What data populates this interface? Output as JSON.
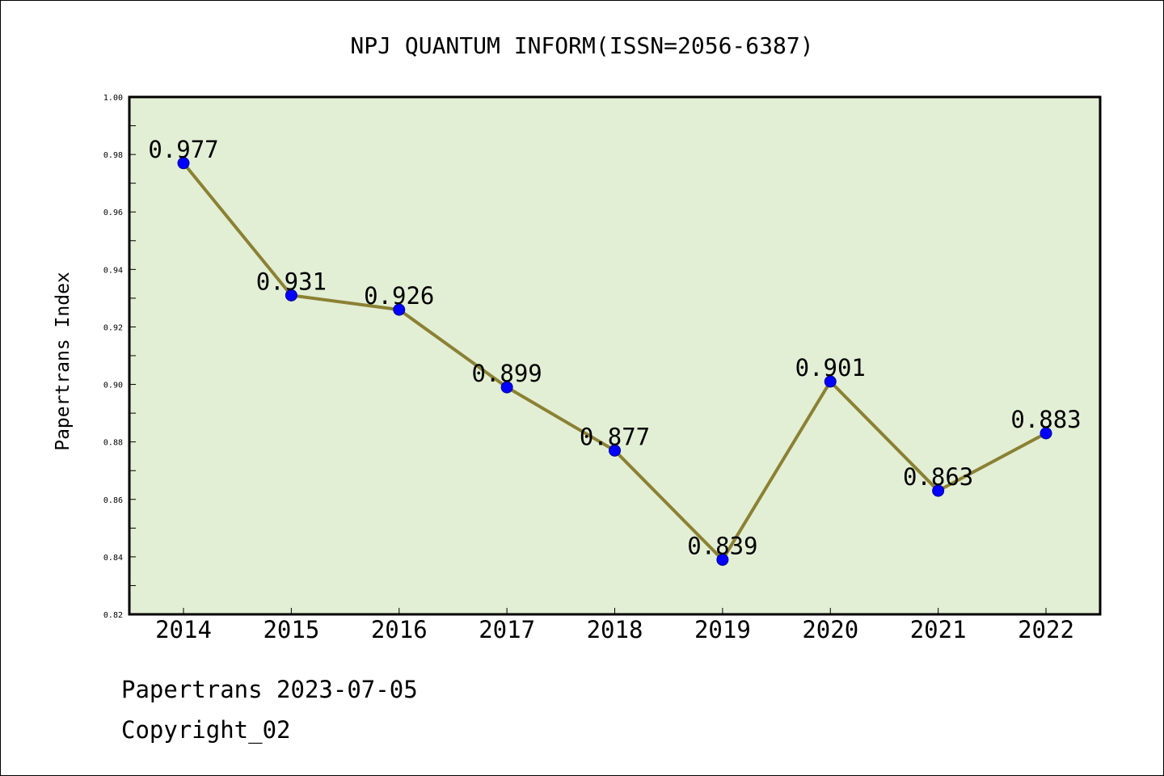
{
  "chart_data": {
    "type": "line",
    "title": "NPJ QUANTUM INFORM(ISSN=2056-6387)",
    "xlabel": "",
    "ylabel": "Papertrans Index",
    "categories": [
      "2014",
      "2015",
      "2016",
      "2017",
      "2018",
      "2019",
      "2020",
      "2021",
      "2022"
    ],
    "series": [
      {
        "values": [
          0.977,
          0.931,
          0.926,
          0.899,
          0.877,
          0.839,
          0.901,
          0.863,
          0.883
        ],
        "data_labels": [
          "0.977",
          "0.931",
          "0.926",
          "0.899",
          "0.877",
          "0.839",
          "0.901",
          "0.863",
          "0.883"
        ]
      }
    ],
    "ylim": [
      0.82,
      1.0
    ],
    "yticks": [
      "0.82",
      "0.84",
      "0.86",
      "0.88",
      "0.90",
      "0.92",
      "0.94",
      "0.96",
      "0.98",
      "1.00"
    ],
    "grid": false,
    "colors": {
      "plot_background": "#e2efd5",
      "line": "#8b8133",
      "marker": "#0000ff"
    }
  },
  "footer": {
    "line1": "Papertrans 2023-07-05",
    "line2": "Copyright_02"
  }
}
